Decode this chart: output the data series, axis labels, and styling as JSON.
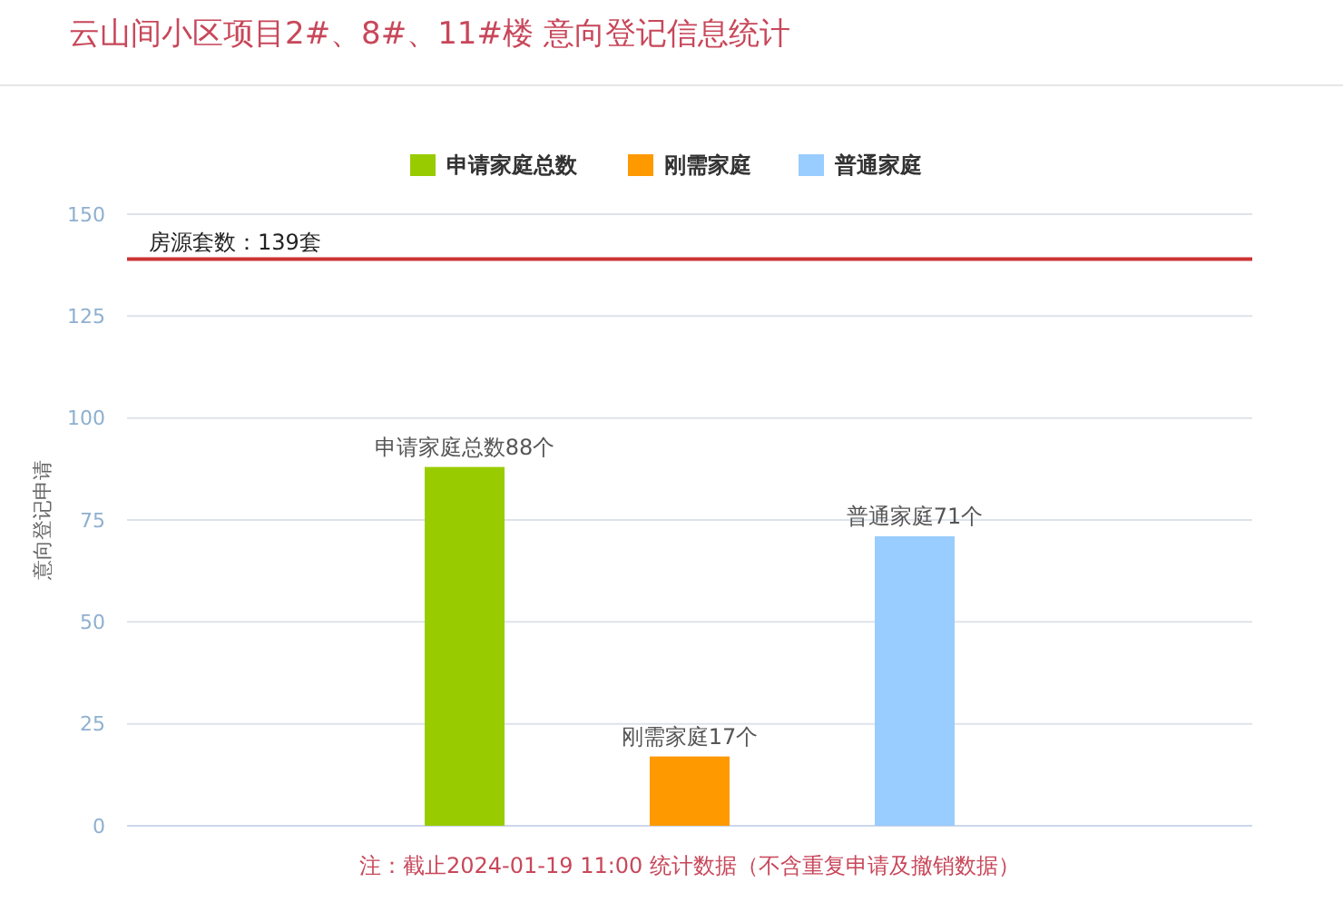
{
  "chart_data": {
    "type": "bar",
    "title": "云山间小区项目2#、8#、11#楼 意向登记信息统计",
    "ylabel": "意向登记申请",
    "categories": [
      null,
      null,
      null,
      null,
      null
    ],
    "series": [
      {
        "name": "申请家庭总数",
        "color": "#99cc00",
        "values": [
          null,
          88,
          null,
          null,
          null
        ],
        "value_labels": [
          null,
          "申请家庭总数88个",
          null,
          null,
          null
        ]
      },
      {
        "name": "刚需家庭",
        "color": "#ff9900",
        "values": [
          null,
          null,
          17,
          null,
          null
        ],
        "value_labels": [
          null,
          null,
          "刚需家庭17个",
          null,
          null
        ]
      },
      {
        "name": "普通家庭",
        "color": "#99ccff",
        "values": [
          null,
          null,
          null,
          71,
          null
        ],
        "value_labels": [
          null,
          null,
          null,
          "普通家庭71个",
          null
        ]
      }
    ],
    "ylim": [
      0,
      150
    ],
    "yticks": [
      0,
      25,
      50,
      75,
      100,
      125,
      150
    ],
    "grid": "y",
    "legend": "top",
    "ref_lines": [
      {
        "axis": "y",
        "value": 139,
        "label": "房源套数：139套",
        "color": "#cc3333"
      }
    ],
    "annotations": [
      "注：截止2024-01-19 11:00 统计数据（不含重复申请及撤销数据）"
    ]
  }
}
